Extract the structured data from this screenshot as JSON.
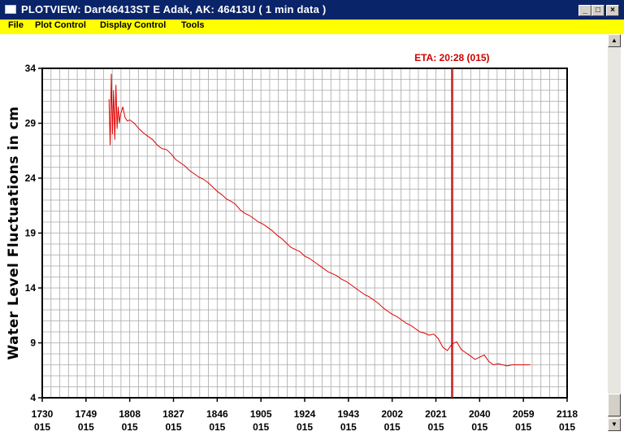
{
  "window": {
    "title": "PLOTVIEW:   Dart46413ST E Adak, AK: 46413U (  1 min data )",
    "minimize_glyph": "_",
    "maximize_glyph": "□",
    "close_glyph": "×"
  },
  "menu": {
    "items": [
      {
        "label": "File"
      },
      {
        "label": "Plot Control"
      },
      {
        "label": "Display Control"
      },
      {
        "label": "Tools"
      }
    ]
  },
  "scrollbar": {
    "up_glyph": "▲",
    "down_glyph": "▼"
  },
  "colors": {
    "titlebar": "#0a246a",
    "menubar": "#ffff00",
    "series": "#e00000",
    "eta_line": "#cc0000",
    "grid": "#a8a8a8"
  },
  "chart_data": {
    "type": "line",
    "ylabel": "Water Level Fluctuations in cm",
    "ylim": [
      4,
      34
    ],
    "yticks": [
      4,
      9,
      14,
      19,
      24,
      29,
      34
    ],
    "xlim_minutes": [
      1050,
      1278
    ],
    "xticks": [
      {
        "value": 1050,
        "label": "1730",
        "day": "015"
      },
      {
        "value": 1069,
        "label": "1749",
        "day": "015"
      },
      {
        "value": 1088,
        "label": "1808",
        "day": "015"
      },
      {
        "value": 1107,
        "label": "1827",
        "day": "015"
      },
      {
        "value": 1126,
        "label": "1846",
        "day": "015"
      },
      {
        "value": 1145,
        "label": "1905",
        "day": "015"
      },
      {
        "value": 1164,
        "label": "1924",
        "day": "015"
      },
      {
        "value": 1183,
        "label": "1943",
        "day": "015"
      },
      {
        "value": 1202,
        "label": "2002",
        "day": "015"
      },
      {
        "value": 1221,
        "label": "2021",
        "day": "015"
      },
      {
        "value": 1240,
        "label": "2040",
        "day": "015"
      },
      {
        "value": 1259,
        "label": "2059",
        "day": "015"
      },
      {
        "value": 1278,
        "label": "2118",
        "day": "015"
      }
    ],
    "grid": true,
    "annotation": {
      "label": "ETA: 20:28 (015)",
      "x": 1228
    },
    "series": [
      {
        "x": [
          1079,
          1079.5,
          1080,
          1080.5,
          1081,
          1081.5,
          1082,
          1082.5,
          1083,
          1083.5,
          1084,
          1085,
          1086,
          1087,
          1088,
          1090,
          1092,
          1094,
          1096,
          1098,
          1100,
          1102,
          1104,
          1106,
          1108,
          1110,
          1112,
          1114,
          1116,
          1118,
          1120,
          1122,
          1124,
          1126,
          1128,
          1130,
          1132,
          1134,
          1136,
          1138,
          1140,
          1142,
          1144,
          1146,
          1148,
          1150,
          1152,
          1154,
          1156,
          1158,
          1160,
          1162,
          1164,
          1166,
          1168,
          1170,
          1172,
          1174,
          1176,
          1178,
          1180,
          1182,
          1184,
          1186,
          1188,
          1190,
          1192,
          1194,
          1196,
          1198,
          1200,
          1202,
          1204,
          1206,
          1208,
          1210,
          1212,
          1214,
          1216,
          1218,
          1220,
          1222,
          1224,
          1226,
          1228,
          1230,
          1232,
          1234,
          1236,
          1238,
          1240,
          1242,
          1244,
          1246,
          1248,
          1250,
          1252,
          1254,
          1256,
          1258,
          1260,
          1262
        ],
        "y": [
          31.2,
          27.0,
          33.5,
          28.0,
          32.0,
          27.5,
          32.5,
          28.5,
          30.5,
          29.0,
          29.8,
          30.5,
          29.5,
          29.2,
          29.3,
          29.0,
          28.5,
          28.1,
          27.8,
          27.5,
          27.0,
          26.7,
          26.6,
          26.2,
          25.7,
          25.4,
          25.1,
          24.7,
          24.4,
          24.1,
          23.9,
          23.6,
          23.2,
          22.8,
          22.5,
          22.1,
          21.9,
          21.6,
          21.1,
          20.8,
          20.6,
          20.3,
          20.0,
          19.8,
          19.5,
          19.2,
          18.8,
          18.5,
          18.1,
          17.7,
          17.5,
          17.3,
          16.9,
          16.7,
          16.4,
          16.1,
          15.8,
          15.5,
          15.3,
          15.1,
          14.8,
          14.6,
          14.3,
          14.0,
          13.7,
          13.4,
          13.2,
          12.9,
          12.6,
          12.2,
          11.9,
          11.6,
          11.4,
          11.1,
          10.8,
          10.6,
          10.3,
          10.0,
          9.9,
          9.7,
          9.8,
          9.4,
          8.6,
          8.3,
          8.9,
          9.1,
          8.4,
          8.1,
          7.8,
          7.5,
          7.7,
          7.9,
          7.3,
          7.0,
          7.1,
          7.0,
          6.9,
          7.0,
          7.0,
          7.0,
          7.0,
          7.0
        ]
      }
    ]
  }
}
